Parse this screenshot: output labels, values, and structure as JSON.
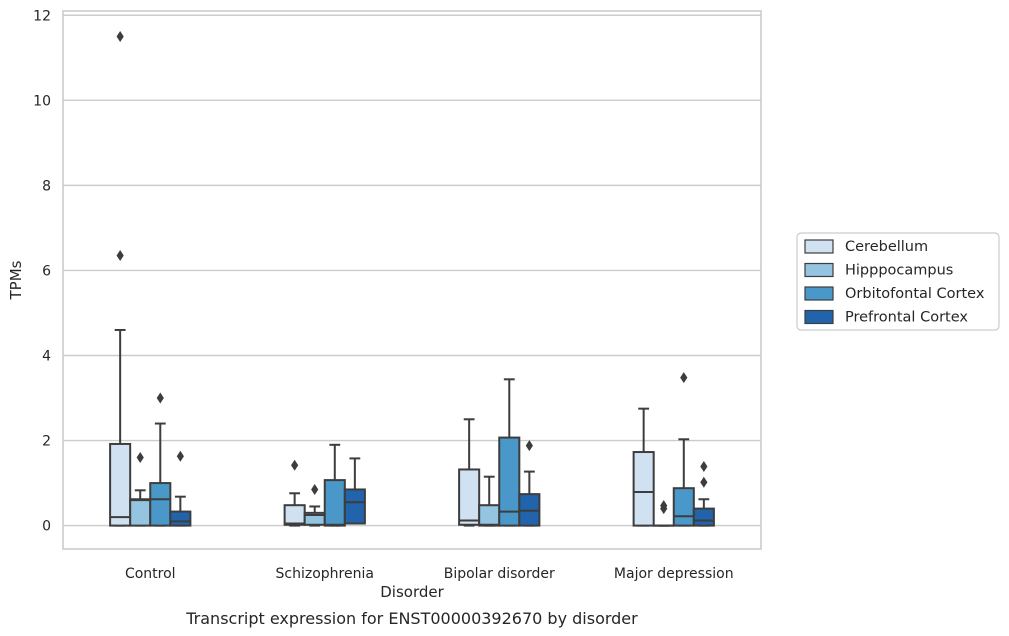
{
  "caption": "Transcript expression for ENST00000392670 by disorder",
  "chart_data": {
    "type": "box",
    "xlabel": "Disorder",
    "ylabel": "TPMs",
    "ylim": [
      -0.55,
      12.1
    ],
    "yticks": [
      0,
      2,
      4,
      6,
      8,
      10,
      12
    ],
    "grid": "horizontal",
    "legend_position": "right",
    "categories": [
      "Control",
      "Schizophrenia",
      "Bipolar disorder",
      "Major depression"
    ],
    "series": [
      {
        "name": "Cerebellum",
        "color": "#d0e1f2",
        "boxes": [
          {
            "whislo": 0,
            "q1": 0,
            "med": 0.2,
            "q3": 1.92,
            "whishi": 4.6,
            "fliers": [
              6.35,
              11.5
            ]
          },
          {
            "whislo": 0,
            "q1": 0.02,
            "med": 0.05,
            "q3": 0.48,
            "whishi": 0.76,
            "fliers": [
              1.42
            ]
          },
          {
            "whislo": 0,
            "q1": 0.02,
            "med": 0.12,
            "q3": 1.32,
            "whishi": 2.5,
            "fliers": []
          },
          {
            "whislo": 0,
            "q1": 0,
            "med": 0.79,
            "q3": 1.73,
            "whishi": 2.75,
            "fliers": []
          }
        ]
      },
      {
        "name": "Hipppocampus",
        "color": "#94c4df",
        "boxes": [
          {
            "whislo": 0,
            "q1": 0,
            "med": 0.6,
            "q3": 0.62,
            "whishi": 0.83,
            "fliers": [
              1.6
            ]
          },
          {
            "whislo": 0,
            "q1": 0.02,
            "med": 0.25,
            "q3": 0.3,
            "whishi": 0.45,
            "fliers": [
              0.85
            ]
          },
          {
            "whislo": 0,
            "q1": 0,
            "med": 0.02,
            "q3": 0.48,
            "whishi": 1.15,
            "fliers": []
          },
          {
            "whislo": 0,
            "q1": 0,
            "med": 0,
            "q3": 0,
            "whishi": 0,
            "fliers": [
              0.4,
              0.47
            ]
          }
        ]
      },
      {
        "name": "Orbitofontal Cortex",
        "color": "#4a98c9",
        "boxes": [
          {
            "whislo": 0,
            "q1": 0,
            "med": 0.62,
            "q3": 1.0,
            "whishi": 2.4,
            "fliers": [
              3.0
            ]
          },
          {
            "whislo": 0,
            "q1": 0,
            "med": 0.02,
            "q3": 1.07,
            "whishi": 1.9,
            "fliers": []
          },
          {
            "whislo": 0,
            "q1": 0,
            "med": 0.33,
            "q3": 2.07,
            "whishi": 3.44,
            "fliers": []
          },
          {
            "whislo": 0,
            "q1": 0,
            "med": 0.22,
            "q3": 0.88,
            "whishi": 2.03,
            "fliers": [
              3.48
            ]
          }
        ]
      },
      {
        "name": "Prefrontal Cortex",
        "color": "#2164ab",
        "boxes": [
          {
            "whislo": 0,
            "q1": 0,
            "med": 0.1,
            "q3": 0.33,
            "whishi": 0.68,
            "fliers": [
              1.63
            ]
          },
          {
            "whislo": 0.05,
            "q1": 0.05,
            "med": 0.55,
            "q3": 0.85,
            "whishi": 1.58,
            "fliers": []
          },
          {
            "whislo": 0,
            "q1": 0,
            "med": 0.35,
            "q3": 0.74,
            "whishi": 1.27,
            "fliers": [
              1.88
            ]
          },
          {
            "whislo": 0,
            "q1": 0,
            "med": 0.12,
            "q3": 0.4,
            "whishi": 0.62,
            "fliers": [
              1.02,
              1.39
            ]
          }
        ]
      }
    ]
  }
}
